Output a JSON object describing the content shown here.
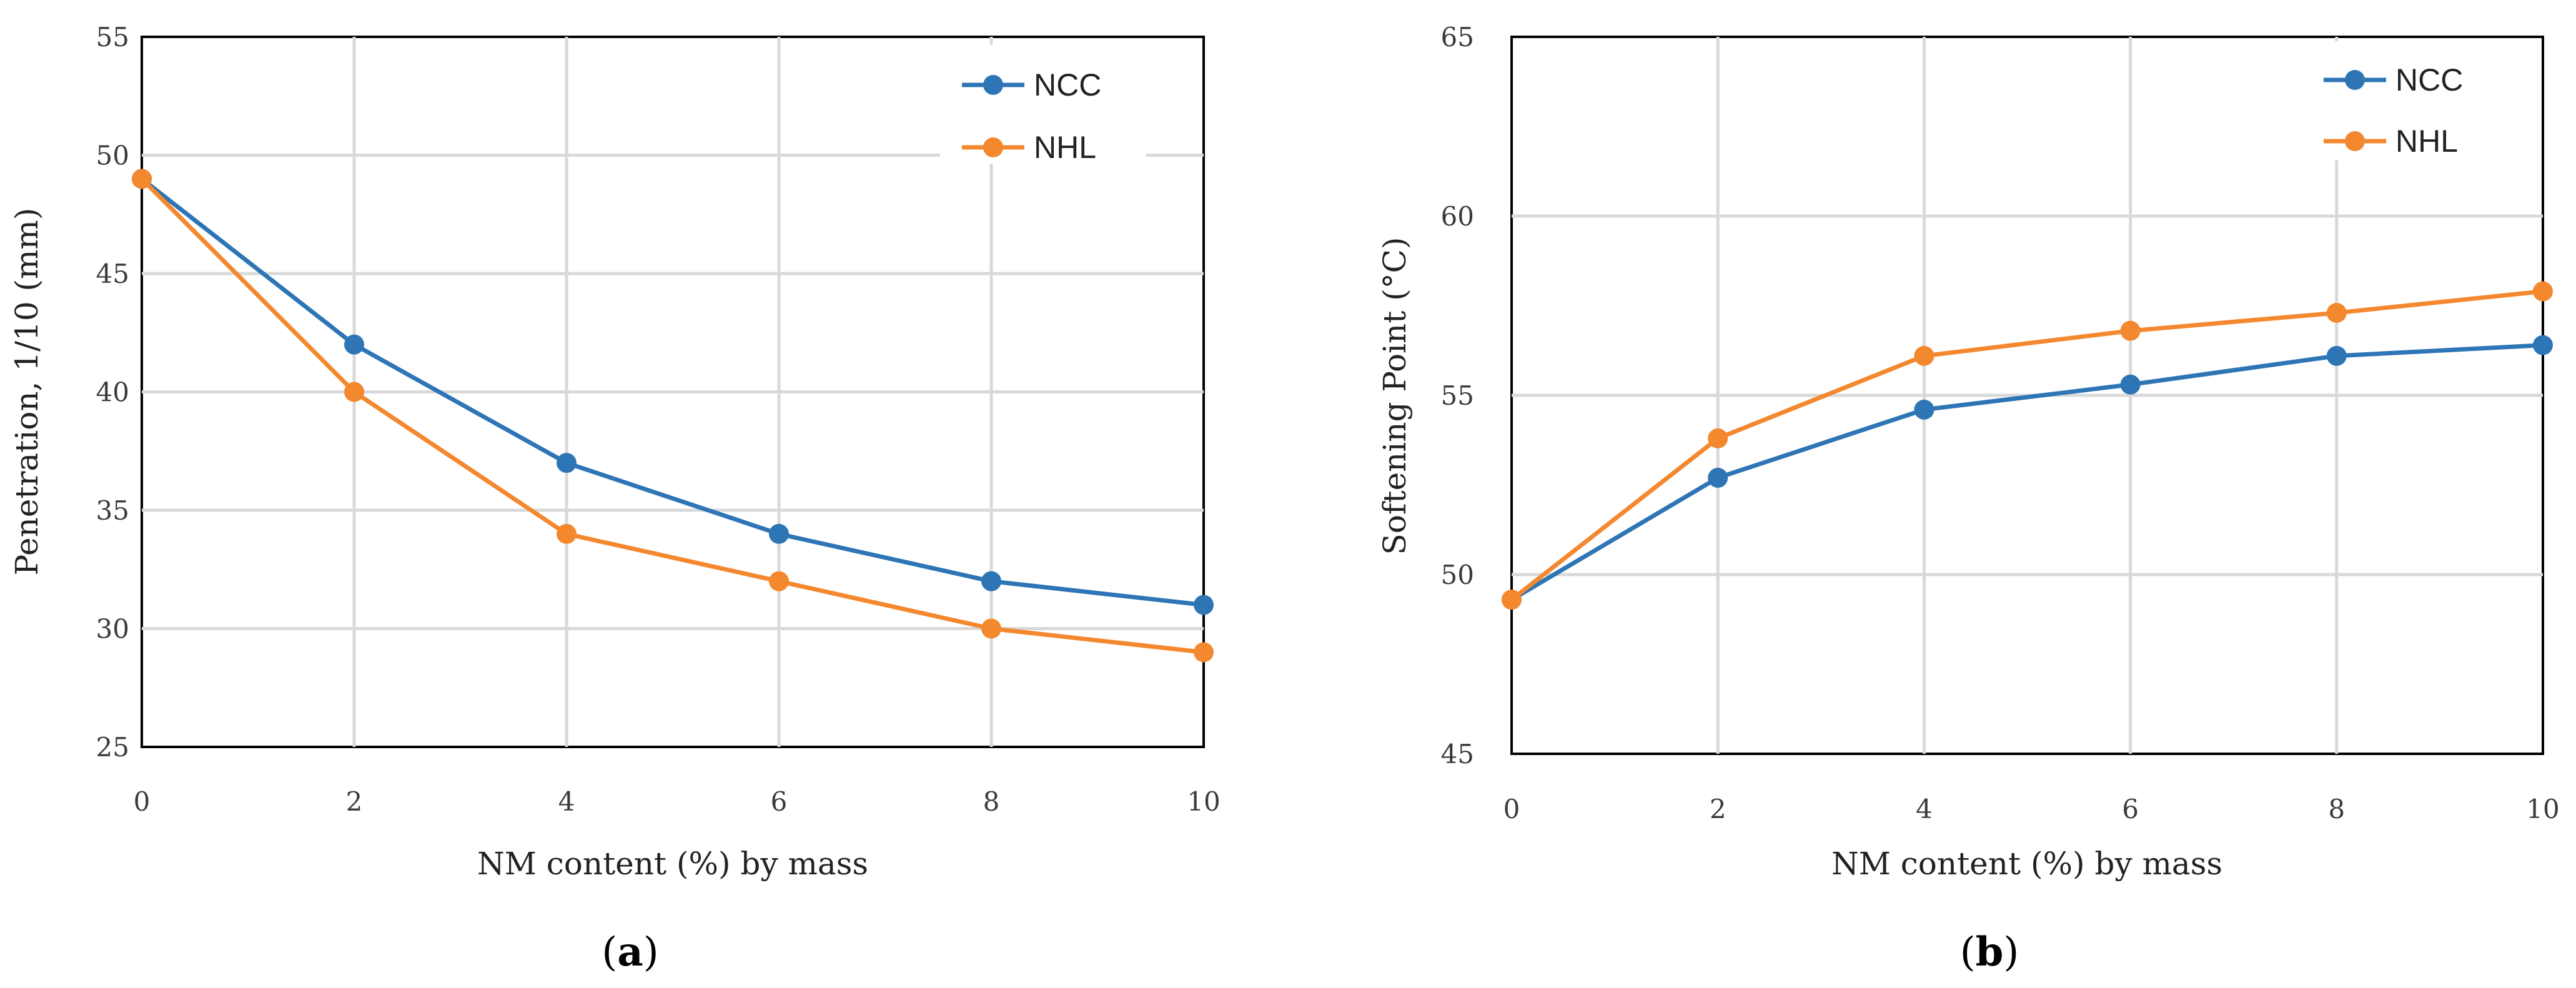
{
  "chart_data": [
    {
      "type": "line",
      "caption_letter": "a",
      "xlabel": "NM content (%) by mass",
      "ylabel": "Penetration, 1/10 (mm)",
      "x": [
        0,
        2,
        4,
        6,
        8,
        10
      ],
      "x_ticks": [
        "0",
        "2",
        "4",
        "6",
        "8",
        "10"
      ],
      "xlim": [
        0,
        10
      ],
      "ylim": [
        25,
        55
      ],
      "y_ticks": [
        "25",
        "30",
        "35",
        "40",
        "45",
        "50",
        "55"
      ],
      "grid": true,
      "legend_position": "top-right",
      "series": [
        {
          "name": "NCC",
          "color": "#2e75b6",
          "values": [
            49,
            42,
            37,
            34,
            32,
            31
          ]
        },
        {
          "name": "NHL",
          "color": "#f4882f",
          "values": [
            49,
            40,
            34,
            32,
            30,
            29
          ]
        }
      ]
    },
    {
      "type": "line",
      "caption_letter": "b",
      "xlabel": "NM content (%) by mass",
      "ylabel": "Softening Point (°C)",
      "x": [
        0,
        2,
        4,
        6,
        8,
        10
      ],
      "x_ticks": [
        "0",
        "2",
        "4",
        "6",
        "8",
        "10"
      ],
      "xlim": [
        0,
        10
      ],
      "ylim": [
        45,
        65
      ],
      "y_ticks": [
        "45",
        "50",
        "55",
        "60",
        "65"
      ],
      "grid": true,
      "legend_position": "top-right",
      "series": [
        {
          "name": "NCC",
          "color": "#2e75b6",
          "values": [
            49.3,
            52.7,
            54.6,
            55.3,
            56.1,
            56.4
          ]
        },
        {
          "name": "NHL",
          "color": "#f4882f",
          "values": [
            49.3,
            53.8,
            56.1,
            56.8,
            57.3,
            57.9
          ]
        }
      ]
    }
  ]
}
